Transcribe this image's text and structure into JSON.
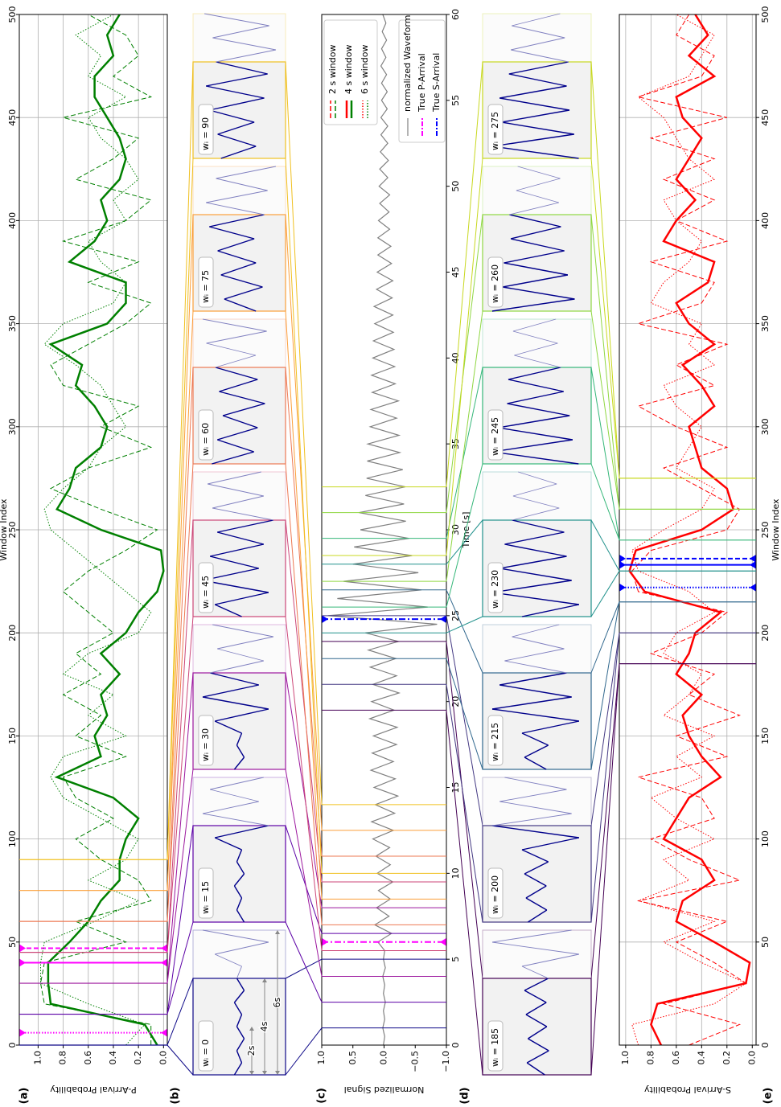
{
  "chart_data": [
    {
      "type": "line",
      "panel": "(a)",
      "xlabel": "Window Index",
      "ylabel": "P-Arrival Probability",
      "x": [
        0,
        10,
        20,
        30,
        40,
        50,
        60,
        70,
        80,
        90,
        100,
        110,
        120,
        130,
        140,
        150,
        160,
        170,
        180,
        190,
        200,
        210,
        220,
        230,
        240,
        250,
        260,
        270,
        280,
        290,
        300,
        310,
        320,
        330,
        340,
        350,
        360,
        370,
        380,
        390,
        400,
        410,
        420,
        430,
        440,
        450,
        460,
        470,
        480,
        490,
        500
      ],
      "series": [
        {
          "name": "2 s window",
          "color": "#008000",
          "dash": "dashed",
          "true_arrival": 47,
          "values": [
            0.1,
            0.1,
            0.95,
            0.98,
            0.95,
            0.3,
            0.7,
            0.1,
            0.2,
            0.5,
            0.7,
            0.4,
            0.7,
            0.8,
            0.3,
            0.7,
            0.5,
            0.8,
            0.5,
            0.7,
            0.4,
            0.6,
            0.8,
            0.6,
            0.3,
            0.05,
            0.5,
            0.9,
            0.6,
            0.1,
            0.5,
            0.2,
            0.8,
            0.9,
            0.6,
            0.3,
            0.1,
            0.6,
            0.2,
            0.8,
            0.3,
            0.1,
            0.7,
            0.4,
            0.2,
            0.8,
            0.1,
            0.4,
            0.2,
            0.3,
            0.6
          ]
        },
        {
          "name": "4 s window",
          "color": "#008000",
          "dash": "solid",
          "true_arrival": 40,
          "values": [
            0.05,
            0.15,
            0.9,
            0.92,
            0.92,
            0.75,
            0.6,
            0.5,
            0.35,
            0.35,
            0.3,
            0.2,
            0.4,
            0.85,
            0.5,
            0.55,
            0.45,
            0.5,
            0.35,
            0.5,
            0.3,
            0.2,
            0.05,
            0.0,
            0.02,
            0.5,
            0.85,
            0.75,
            0.7,
            0.5,
            0.45,
            0.55,
            0.7,
            0.65,
            0.9,
            0.45,
            0.3,
            0.3,
            0.75,
            0.55,
            0.45,
            0.5,
            0.35,
            0.3,
            0.35,
            0.45,
            0.55,
            0.55,
            0.4,
            0.45,
            0.35
          ]
        },
        {
          "name": "6 s window",
          "color": "#008000",
          "dash": "dotted",
          "true_arrival": 6,
          "values": [
            0.3,
            0.15,
            0.6,
            0.98,
            0.98,
            0.95,
            0.55,
            0.2,
            0.6,
            0.3,
            0.2,
            0.5,
            0.8,
            0.9,
            0.8,
            0.3,
            0.6,
            0.4,
            0.8,
            0.6,
            0.2,
            0.1,
            0.3,
            0.5,
            0.7,
            0.9,
            0.95,
            0.8,
            0.6,
            0.5,
            0.3,
            0.4,
            0.5,
            0.7,
            0.95,
            0.8,
            0.4,
            0.3,
            0.5,
            0.6,
            0.3,
            0.4,
            0.2,
            0.3,
            0.5,
            0.6,
            0.3,
            0.6,
            0.5,
            0.7,
            0.4
          ]
        }
      ],
      "arrival_color": "#ff00ff",
      "xlim": [
        0,
        500
      ],
      "xticks": [
        0,
        50,
        100,
        150,
        200,
        250,
        300,
        350,
        400,
        450,
        500
      ],
      "ylim": [
        -0.03,
        1.15
      ],
      "yticks": [
        {
          "value": 0,
          "label": "0.0"
        },
        0.2,
        0.4,
        0.6,
        0.8,
        {
          "value": 1,
          "label": "1.0"
        }
      ],
      "grid": true
    },
    {
      "type": "waveform",
      "panel": "(c)",
      "xlabel": "Time [s]",
      "ylabel": "Normalized Signal",
      "x": [
        0,
        0.5,
        1,
        1.5,
        2,
        2.5,
        3,
        3.5,
        4,
        4.5,
        5,
        5.5,
        6,
        6.5,
        7,
        7.5,
        8,
        8.5,
        9,
        9.5,
        10,
        10.5,
        11,
        11.5,
        12,
        12.5,
        13,
        13.5,
        14,
        14.5,
        15,
        15.5,
        16,
        16.5,
        17,
        17.5,
        18,
        18.5,
        19,
        19.5,
        20,
        20.5,
        21,
        21.5,
        22,
        22.5,
        23,
        23.5,
        24,
        24.5,
        25,
        25.5,
        26,
        26.5,
        27,
        27.5,
        28,
        28.5,
        29,
        29.5,
        30,
        30.5,
        31,
        31.5,
        32,
        32.5,
        33,
        33.5,
        34,
        34.5,
        35,
        35.5,
        36,
        36.5,
        37,
        37.5,
        38,
        38.5,
        39,
        39.5,
        40,
        40.5,
        41,
        41.5,
        42,
        42.5,
        43,
        43.5,
        44,
        44.5,
        45,
        45.5,
        46,
        46.5,
        47,
        47.5,
        48,
        48.5,
        49,
        49.5,
        50,
        50.5,
        51,
        51.5,
        52,
        52.5,
        53,
        53.5,
        54,
        54.5,
        55,
        55.5,
        56,
        56.5,
        57,
        57.5,
        58,
        58.5,
        59,
        59.5,
        60
      ],
      "series": [
        {
          "name": "normalized Waveform",
          "color": "#808080",
          "values": [
            0.01,
            -0.01,
            0.02,
            -0.01,
            0.01,
            -0.02,
            0.01,
            -0.01,
            0.02,
            -0.02,
            0.01,
            -0.01,
            0.1,
            -0.12,
            0.15,
            -0.08,
            0.12,
            -0.1,
            0.09,
            -0.14,
            0.11,
            -0.1,
            0.13,
            -0.09,
            0.18,
            -0.15,
            0.2,
            -0.17,
            0.14,
            -0.22,
            0.16,
            -0.18,
            0.21,
            -0.15,
            0.19,
            -0.2,
            0.17,
            -0.21,
            0.23,
            -0.16,
            0.2,
            -0.24,
            0.18,
            -0.2,
            0.22,
            -0.19,
            0.25,
            -0.23,
            0.3,
            -0.85,
            0.9,
            -0.7,
            0.75,
            -0.6,
            0.65,
            -0.55,
            0.5,
            -0.45,
            0.48,
            -0.4,
            0.38,
            -0.35,
            0.4,
            -0.32,
            0.3,
            -0.34,
            0.28,
            -0.3,
            0.27,
            -0.25,
            0.26,
            -0.24,
            0.22,
            -0.2,
            0.21,
            -0.23,
            0.19,
            -0.18,
            0.2,
            -0.17,
            0.18,
            -0.16,
            0.17,
            -0.15,
            0.15,
            -0.14,
            0.16,
            -0.13,
            0.12,
            -0.14,
            0.11,
            -0.12,
            0.1,
            -0.11,
            0.1,
            -0.09,
            0.09,
            -0.08,
            0.07,
            -0.09,
            0.08,
            -0.06,
            0.07,
            -0.07,
            0.06,
            -0.06,
            0.05,
            -0.06,
            0.05,
            -0.05,
            0.04,
            -0.05,
            0.04,
            -0.04,
            0.05,
            -0.03,
            0.04,
            -0.04,
            0.03,
            -0.03,
            0.02
          ]
        }
      ],
      "arrivals": [
        {
          "name": "True P-Arrival",
          "color": "#ff00ff",
          "x": 6.0
        },
        {
          "name": "True S-Arrival",
          "color": "#0000ff",
          "x": 24.8
        }
      ],
      "xlim": [
        0,
        60
      ],
      "xticks": [
        0,
        5,
        10,
        15,
        20,
        25,
        30,
        35,
        40,
        45,
        50,
        55,
        60
      ],
      "ylim": [
        -1,
        1
      ],
      "yticks": [
        {
          "value": -1,
          "label": "−1.0"
        },
        {
          "value": -0.5,
          "label": "−0.5"
        },
        {
          "value": 0,
          "label": "0.0"
        },
        0.5,
        {
          "value": 1,
          "label": "1.0"
        }
      ],
      "grid": false
    },
    {
      "type": "line",
      "panel": "(e)",
      "xlabel": "Window Index",
      "ylabel": "S-Arrival Probability",
      "x": [
        0,
        10,
        20,
        30,
        40,
        50,
        60,
        70,
        80,
        90,
        100,
        110,
        120,
        130,
        140,
        150,
        160,
        170,
        180,
        190,
        200,
        210,
        220,
        230,
        240,
        250,
        260,
        270,
        280,
        290,
        300,
        310,
        320,
        330,
        340,
        350,
        360,
        370,
        380,
        390,
        400,
        410,
        420,
        430,
        440,
        450,
        460,
        470,
        480,
        490,
        500
      ],
      "series": [
        {
          "name": "2 s window",
          "color": "#ff0000",
          "dash": "dashed",
          "true_arrival": 236,
          "values": [
            0.5,
            0.1,
            0.7,
            0.05,
            0.3,
            0.6,
            0.2,
            0.9,
            0.1,
            0.5,
            0.8,
            0.3,
            0.4,
            0.9,
            0.2,
            0.6,
            0.1,
            0.5,
            0.3,
            0.8,
            0.4,
            0.2,
            0.9,
            0.95,
            0.8,
            0.2,
            0.1,
            0.4,
            0.7,
            0.2,
            0.6,
            0.9,
            0.3,
            0.6,
            0.2,
            0.9,
            0.4,
            0.3,
            0.8,
            0.2,
            0.6,
            0.3,
            0.7,
            0.3,
            0.8,
            0.2,
            0.9,
            0.4,
            0.3,
            0.6,
            0.5
          ]
        },
        {
          "name": "4 s window",
          "color": "#ff0000",
          "dash": "solid",
          "true_arrival": 233,
          "values": [
            0.72,
            0.8,
            0.75,
            0.05,
            0.02,
            0.3,
            0.6,
            0.55,
            0.3,
            0.4,
            0.7,
            0.6,
            0.5,
            0.25,
            0.4,
            0.5,
            0.55,
            0.4,
            0.6,
            0.5,
            0.45,
            0.25,
            0.85,
            0.97,
            0.92,
            0.4,
            0.15,
            0.2,
            0.4,
            0.45,
            0.5,
            0.3,
            0.4,
            0.55,
            0.3,
            0.5,
            0.6,
            0.35,
            0.3,
            0.7,
            0.6,
            0.45,
            0.6,
            0.5,
            0.4,
            0.55,
            0.6,
            0.3,
            0.5,
            0.35,
            0.45
          ]
        },
        {
          "name": "6 s window",
          "color": "#ff0000",
          "dash": "dotted",
          "true_arrival": 222,
          "values": [
            0.9,
            0.95,
            0.3,
            0.05,
            0.4,
            0.7,
            0.3,
            0.9,
            0.5,
            0.7,
            0.3,
            0.6,
            0.8,
            0.4,
            0.6,
            0.3,
            0.7,
            0.5,
            0.4,
            0.7,
            0.6,
            0.3,
            0.5,
            0.9,
            0.95,
            0.7,
            0.4,
            0.3,
            0.6,
            0.5,
            0.4,
            0.6,
            0.7,
            0.3,
            0.5,
            0.4,
            0.8,
            0.7,
            0.5,
            0.4,
            0.6,
            0.7,
            0.3,
            0.5,
            0.6,
            0.7,
            0.9,
            0.5,
            0.4,
            0.3,
            0.6
          ]
        }
      ],
      "arrival_color": "#0000ff",
      "xlim": [
        0,
        500
      ],
      "xticks": [
        0,
        50,
        100,
        150,
        200,
        250,
        300,
        350,
        400,
        450,
        500
      ],
      "ylim": [
        -0.03,
        1.05
      ],
      "yticks": [
        {
          "value": 0,
          "label": "0.0"
        },
        0.2,
        0.4,
        0.6,
        0.8,
        {
          "value": 1,
          "label": "1.0"
        }
      ],
      "grid": true
    }
  ],
  "insets": [
    {
      "panel": "(b)",
      "window_length_labels": [
        "2s",
        "4s",
        "6s"
      ],
      "windows": [
        {
          "w": 0,
          "label": "wᵢ = 0",
          "color": "#0d0887"
        },
        {
          "w": 15,
          "label": "wᵢ = 15",
          "color": "#5c01a6"
        },
        {
          "w": 30,
          "label": "wᵢ = 30",
          "color": "#9c179e"
        },
        {
          "w": 45,
          "label": "wᵢ = 45",
          "color": "#cc4778"
        },
        {
          "w": 60,
          "label": "wᵢ = 60",
          "color": "#ed7953"
        },
        {
          "w": 75,
          "label": "wᵢ = 75",
          "color": "#fb9f3a"
        },
        {
          "w": 90,
          "label": "wᵢ = 90",
          "color": "#f0c020"
        }
      ]
    },
    {
      "panel": "(d)",
      "windows": [
        {
          "w": 185,
          "label": "wᵢ = 185",
          "color": "#440154"
        },
        {
          "w": 200,
          "label": "wᵢ = 200",
          "color": "#443983"
        },
        {
          "w": 215,
          "label": "wᵢ = 215",
          "color": "#31688e"
        },
        {
          "w": 230,
          "label": "wᵢ = 230",
          "color": "#21918c"
        },
        {
          "w": 245,
          "label": "wᵢ = 245",
          "color": "#35b779"
        },
        {
          "w": 260,
          "label": "wᵢ = 260",
          "color": "#90d743"
        },
        {
          "w": 275,
          "label": "wᵢ = 275",
          "color": "#c8d820"
        }
      ]
    }
  ]
}
